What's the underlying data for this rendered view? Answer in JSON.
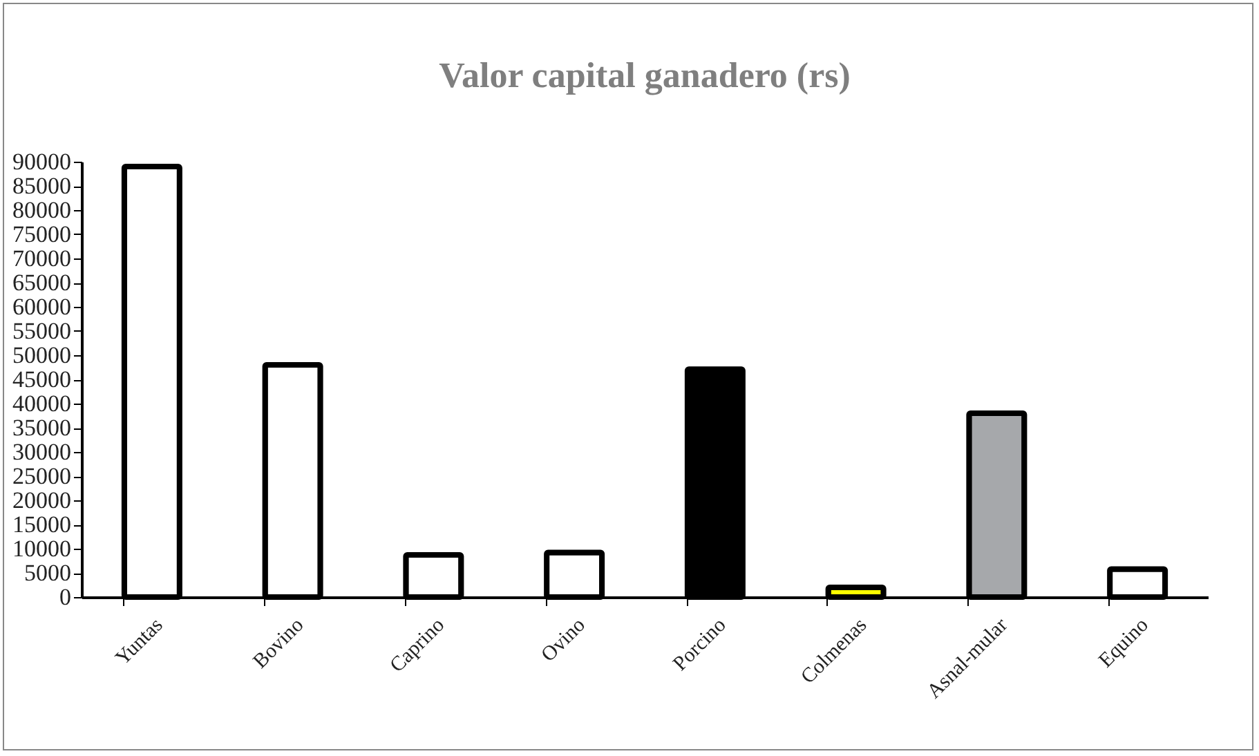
{
  "chart_data": {
    "type": "bar",
    "title": "Valor capital ganadero (rs)",
    "categories": [
      "Yuntas",
      "Bovino",
      "Caprino",
      "Ovino",
      "Porcino",
      "Colmenas",
      "Asnal-mular",
      "Equino"
    ],
    "values": [
      89000,
      48000,
      8700,
      9200,
      47100,
      2000,
      38000,
      5800
    ],
    "colors": [
      "#ffffff",
      "#ffffff",
      "#ffffff",
      "#ffffff",
      "#000000",
      "#ffff00",
      "#a6a8ab",
      "#ffffff"
    ],
    "ylim": [
      0,
      90000
    ],
    "yticks": [
      0,
      5000,
      10000,
      15000,
      20000,
      25000,
      30000,
      35000,
      40000,
      45000,
      50000,
      55000,
      60000,
      65000,
      70000,
      75000,
      80000,
      85000,
      90000
    ],
    "grid": false
  }
}
